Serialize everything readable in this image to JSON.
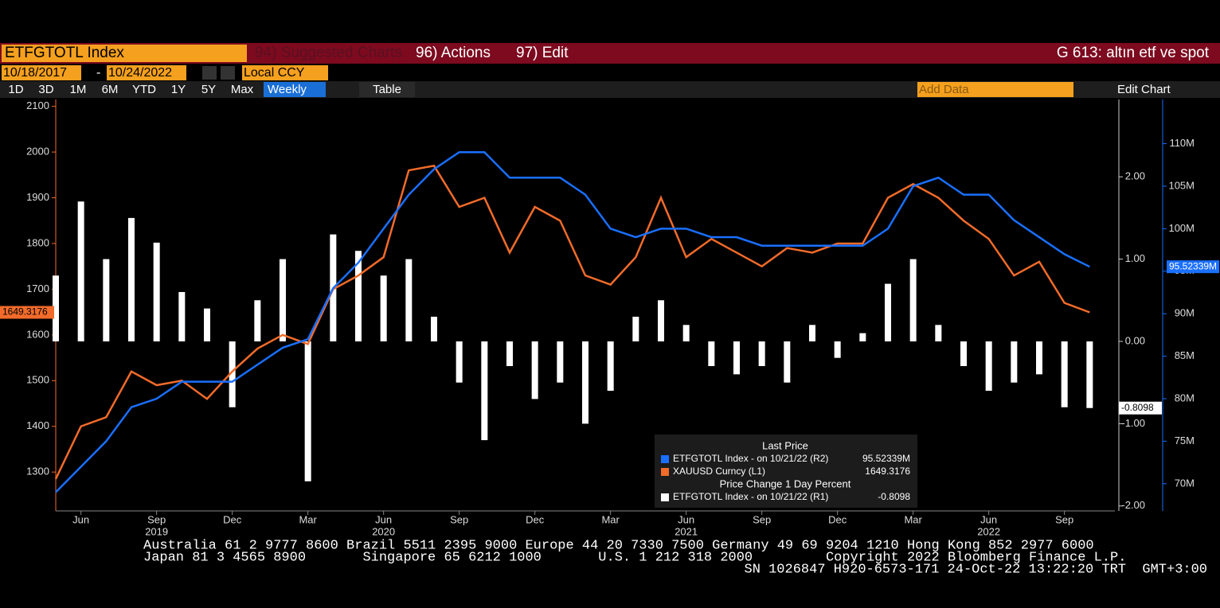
{
  "toolbar": {
    "security": "ETFGTOTL Index",
    "menu": [
      "94) Suggested Charts",
      "96) Actions",
      "97) Edit"
    ],
    "title": "G 613: altın etf ve spot",
    "start_date": "10/18/2017",
    "date_separator": "-",
    "end_date": "10/24/2022",
    "currency": "Local CCY",
    "periods": [
      "1D",
      "3D",
      "1M",
      "6M",
      "YTD",
      "1Y",
      "5Y",
      "Max"
    ],
    "frequency": "Weekly",
    "table": "Table",
    "add_data": "Add Data",
    "edit_chart": "Edit Chart"
  },
  "chart_data": {
    "type": "line",
    "x": [
      "2019-05",
      "2019-06",
      "2019-07",
      "2019-08",
      "2019-09",
      "2019-10",
      "2019-11",
      "2019-12",
      "2020-01",
      "2020-02",
      "2020-03",
      "2020-04",
      "2020-05",
      "2020-06",
      "2020-07",
      "2020-08",
      "2020-09",
      "2020-10",
      "2020-11",
      "2020-12",
      "2021-01",
      "2021-02",
      "2021-03",
      "2021-04",
      "2021-05",
      "2021-06",
      "2021-07",
      "2021-08",
      "2021-09",
      "2021-10",
      "2021-11",
      "2021-12",
      "2022-01",
      "2022-02",
      "2022-03",
      "2022-04",
      "2022-05",
      "2022-06",
      "2022-07",
      "2022-08",
      "2022-09",
      "2022-10"
    ],
    "xlim": [
      "2019-05",
      "2022-11"
    ],
    "xticks": [
      {
        "value": "2019-06",
        "label": "Jun"
      },
      {
        "value": "2019-09",
        "label": "Sep"
      },
      {
        "value": "2019-12",
        "label": "Dec"
      },
      {
        "value": "2020-03",
        "label": "Mar"
      },
      {
        "value": "2020-06",
        "label": "Jun"
      },
      {
        "value": "2020-09",
        "label": "Sep"
      },
      {
        "value": "2020-12",
        "label": "Dec"
      },
      {
        "value": "2021-03",
        "label": "Mar"
      },
      {
        "value": "2021-06",
        "label": "Jun"
      },
      {
        "value": "2021-09",
        "label": "Sep"
      },
      {
        "value": "2021-12",
        "label": "Dec"
      },
      {
        "value": "2022-03",
        "label": "Mar"
      },
      {
        "value": "2022-06",
        "label": "Jun"
      },
      {
        "value": "2022-09",
        "label": "Sep"
      }
    ],
    "year_ticks": [
      {
        "value": "2019-09",
        "label": "2019"
      },
      {
        "value": "2020-06",
        "label": "2020"
      },
      {
        "value": "2021-06",
        "label": "2021"
      },
      {
        "value": "2022-06",
        "label": "2022"
      }
    ],
    "ylim": [
      1215,
      2115
    ],
    "yticks": [
      1300,
      1400,
      1500,
      1600,
      1700,
      1800,
      1900,
      2000,
      2100
    ],
    "y2lim": [
      -2.06,
      2.94
    ],
    "y2ticks": [
      {
        "value": 2,
        "label": "2.00"
      },
      {
        "value": 1,
        "label": "1.00"
      },
      {
        "value": 0,
        "label": "0.00"
      },
      {
        "value": -1,
        "label": "-1.00"
      },
      {
        "value": -2,
        "label": "-2.00"
      }
    ],
    "y3lim": [
      66.8,
      115.2
    ],
    "y3ticks": [
      {
        "value": 70,
        "label": "70M"
      },
      {
        "value": 75,
        "label": "75M"
      },
      {
        "value": 80,
        "label": "80M"
      },
      {
        "value": 85,
        "label": "85M"
      },
      {
        "value": 90,
        "label": "90M"
      },
      {
        "value": 95,
        "label": "95M"
      },
      {
        "value": 100,
        "label": "100M"
      },
      {
        "value": 105,
        "label": "105M"
      },
      {
        "value": 110,
        "label": "110M"
      }
    ],
    "legend": {
      "title": "Last Price",
      "subtitle": "Price Change 1 Day Percent"
    },
    "series": [
      {
        "name": "ETFGTOTL Index -  on 10/21/22  (R2)",
        "color": "#1a6fff",
        "axis": "y3",
        "last_label": "95.52339M",
        "values": [
          69,
          72,
          75,
          79,
          80,
          82,
          82,
          82,
          84,
          86,
          87,
          93,
          96,
          100,
          104,
          107,
          109,
          109,
          106,
          106,
          106,
          104,
          100,
          99,
          100,
          100,
          99,
          99,
          98,
          98,
          98,
          98,
          98,
          100,
          105,
          106,
          104,
          104,
          101,
          99,
          97,
          95.52339
        ]
      },
      {
        "name": "XAUUSD Curncy  (L1)",
        "color": "#f26b2a",
        "axis": "y",
        "last_label": "1649.3176",
        "values": [
          1285,
          1400,
          1420,
          1520,
          1490,
          1500,
          1460,
          1520,
          1570,
          1600,
          1580,
          1700,
          1730,
          1770,
          1960,
          1970,
          1880,
          1900,
          1780,
          1880,
          1850,
          1730,
          1710,
          1770,
          1900,
          1770,
          1810,
          1780,
          1750,
          1790,
          1780,
          1800,
          1800,
          1900,
          1930,
          1900,
          1850,
          1810,
          1730,
          1760,
          1670,
          1649.3176
        ]
      },
      {
        "name": "ETFGTOTL Index -  on 10/21/22  (R1)",
        "color": "#ffffff",
        "axis": "y2",
        "type": "bar",
        "last_label": "-0.8098",
        "values": [
          0.8,
          1.7,
          1.0,
          1.5,
          1.2,
          0.6,
          0.4,
          -0.8,
          0.5,
          1.0,
          -1.7,
          1.3,
          1.1,
          0.8,
          1.0,
          0.3,
          -0.5,
          -1.2,
          -0.3,
          -0.7,
          -0.5,
          -1.0,
          -0.6,
          0.3,
          0.5,
          0.2,
          -0.3,
          -0.4,
          -0.3,
          -0.5,
          0.2,
          -0.2,
          0.1,
          0.7,
          1.0,
          0.2,
          -0.3,
          -0.6,
          -0.5,
          -0.4,
          -0.8,
          -0.8098
        ]
      }
    ]
  },
  "footer": [
    "Australia 61 2 9777 8600 Brazil 5511 2395 9000 Europe 44 20 7330 7500 Germany 49 69 9204 1210 Hong Kong 852 2977 6000",
    "Japan 81 3 4565 8900       Singapore 65 6212 1000       U.S. 1 212 318 2000         Copyright 2022 Bloomberg Finance L.P.",
    "SN 1026847 H920-6573-171 24-Oct-22 13:22:20 TRT  GMT+3:00"
  ]
}
